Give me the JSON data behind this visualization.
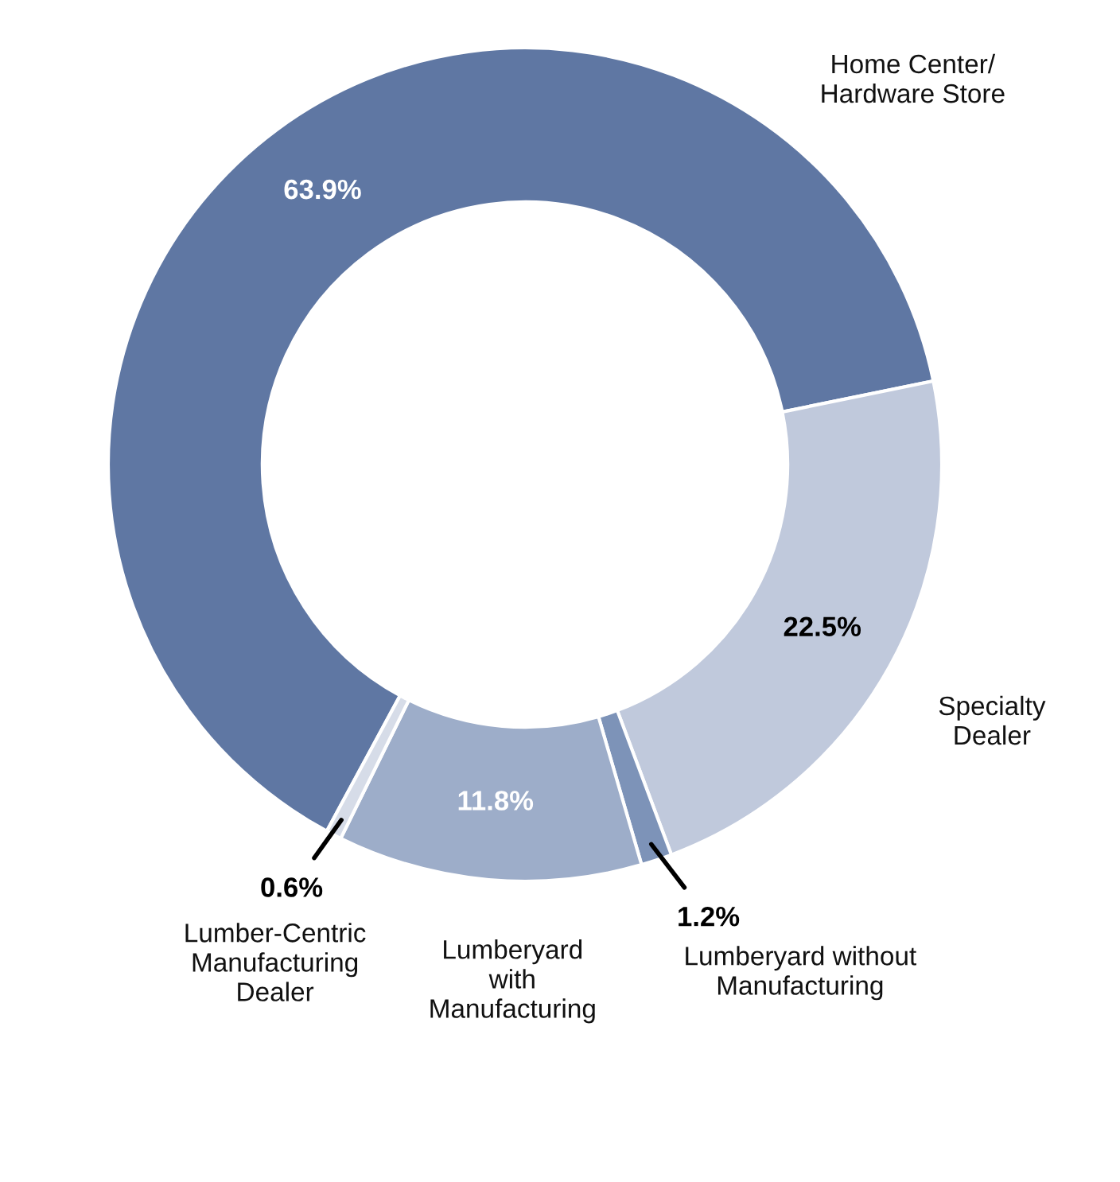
{
  "chart_data": {
    "type": "donut",
    "categories": [
      "Home Center/\nHardware Store",
      "Specialty\nDealer",
      "Lumberyard without\nManufacturing",
      "Lumberyard\nwith\nManufacturing",
      "Lumber-Centric\nManufacturing\nDealer"
    ],
    "values": [
      63.9,
      22.5,
      1.2,
      11.8,
      0.6
    ],
    "colors": [
      "#5f77a3",
      "#c0c9dc",
      "#7d93b8",
      "#9dadc9",
      "#d6dce8"
    ],
    "value_labels": [
      "63.9%",
      "22.5%",
      "1.2%",
      "11.8%",
      "0.6%"
    ],
    "legend": false
  }
}
